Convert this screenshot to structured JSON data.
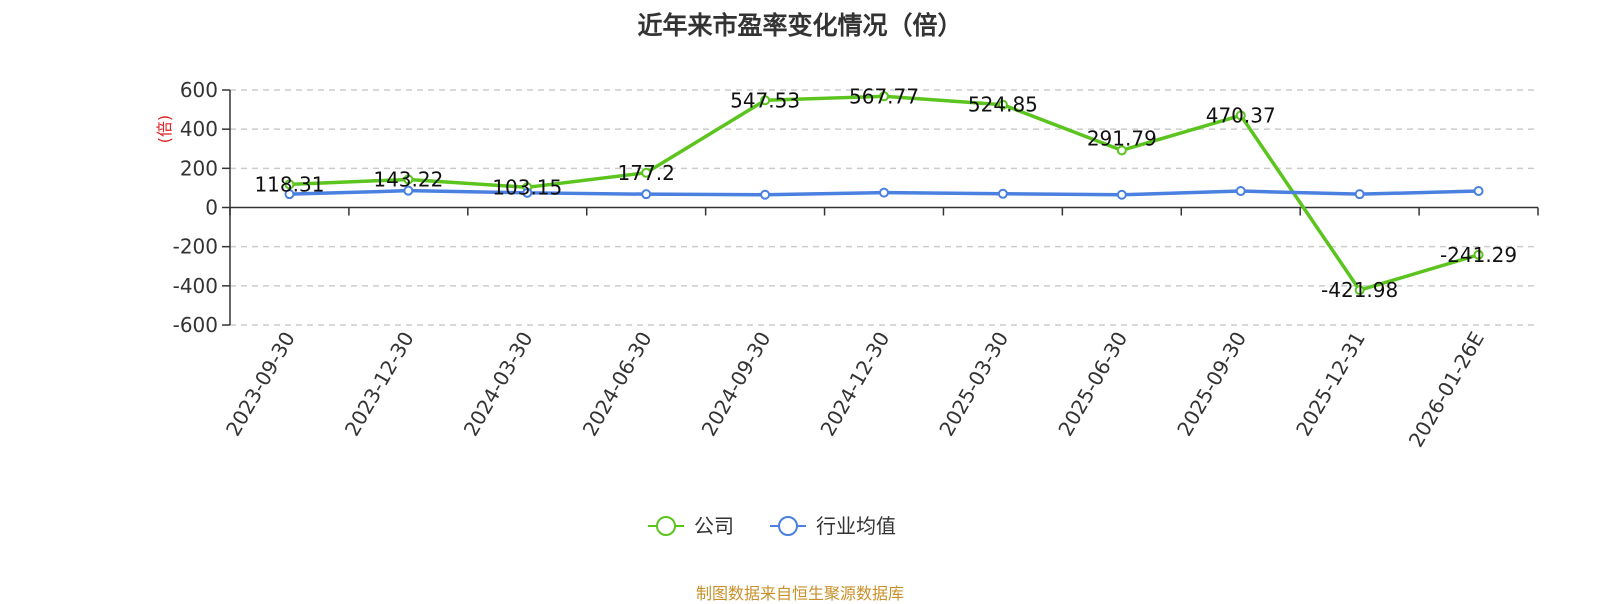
{
  "chart_data": {
    "type": "line",
    "title": "近年来市盈率变化情况（倍）",
    "ylabel": "(倍)",
    "ylim": [
      -600,
      600
    ],
    "yticks": [
      -600,
      -400,
      -200,
      0,
      200,
      400,
      600
    ],
    "grid": true,
    "legend_position": "bottom",
    "categories": [
      "2023-09-30",
      "2023-12-30",
      "2024-03-30",
      "2024-06-30",
      "2024-09-30",
      "2024-12-30",
      "2025-03-30",
      "2025-06-30",
      "2025-09-30",
      "2025-12-31",
      "2026-01-26E"
    ],
    "series": [
      {
        "name": "公司",
        "color": "#5cc41e",
        "values": [
          118.31,
          143.22,
          103.15,
          177.2,
          547.53,
          567.77,
          524.85,
          291.79,
          470.37,
          -421.98,
          -241.29
        ],
        "labels": [
          "118.31",
          "143.22",
          "103.15",
          "177.2",
          "547.53",
          "567.77",
          "524.85",
          "291.79",
          "470.37",
          "-421.98",
          "-241.29"
        ]
      },
      {
        "name": "行业均值",
        "color": "#4a80e0",
        "values": [
          68,
          86,
          75,
          68,
          65,
          76,
          70,
          65,
          84,
          68,
          84
        ]
      }
    ]
  },
  "source": "制图数据来自恒生聚源数据库"
}
